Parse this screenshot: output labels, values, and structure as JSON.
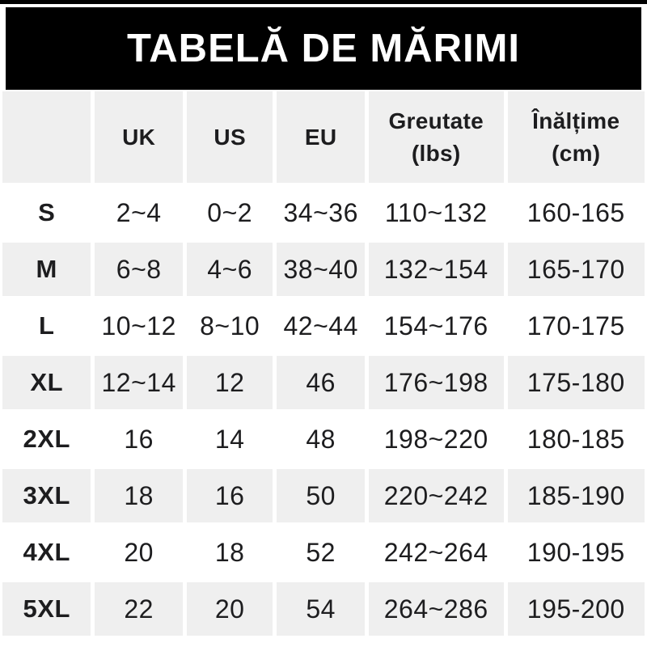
{
  "banner": {
    "title": "TABELĂ DE MĂRIMI"
  },
  "colors": {
    "banner_bg": "#000000",
    "banner_text": "#ffffff",
    "cell_alt_bg": "#efefef",
    "text": "#1d1d1f",
    "page_bg": "#ffffff"
  },
  "chart_data": {
    "type": "table",
    "title": "TABELĂ DE MĂRIMI",
    "columns": [
      "",
      "UK",
      "US",
      "EU",
      "Greutate (lbs)",
      "Înălțime (cm)"
    ],
    "header_display": [
      [
        "",
        ""
      ],
      [
        "UK",
        ""
      ],
      [
        "US",
        ""
      ],
      [
        "EU",
        ""
      ],
      [
        "Greutate",
        "(lbs)"
      ],
      [
        "Înălțime",
        "(cm)"
      ]
    ],
    "rows": [
      [
        "S",
        "2~4",
        "0~2",
        "34~36",
        "110~132",
        "160-165"
      ],
      [
        "M",
        "6~8",
        "4~6",
        "38~40",
        "132~154",
        "165-170"
      ],
      [
        "L",
        "10~12",
        "8~10",
        "42~44",
        "154~176",
        "170-175"
      ],
      [
        "XL",
        "12~14",
        "12",
        "46",
        "176~198",
        "175-180"
      ],
      [
        "2XL",
        "16",
        "14",
        "48",
        "198~220",
        "180-185"
      ],
      [
        "3XL",
        "18",
        "16",
        "50",
        "220~242",
        "185-190"
      ],
      [
        "4XL",
        "20",
        "18",
        "52",
        "242~264",
        "190-195"
      ],
      [
        "5XL",
        "22",
        "20",
        "54",
        "264~286",
        "195-200"
      ]
    ],
    "layout": {
      "striped": true,
      "stripe_pattern": "header gray, then data rows alternate white/gray starting with white",
      "grid_lines": "none (white gaps between cells)"
    }
  }
}
